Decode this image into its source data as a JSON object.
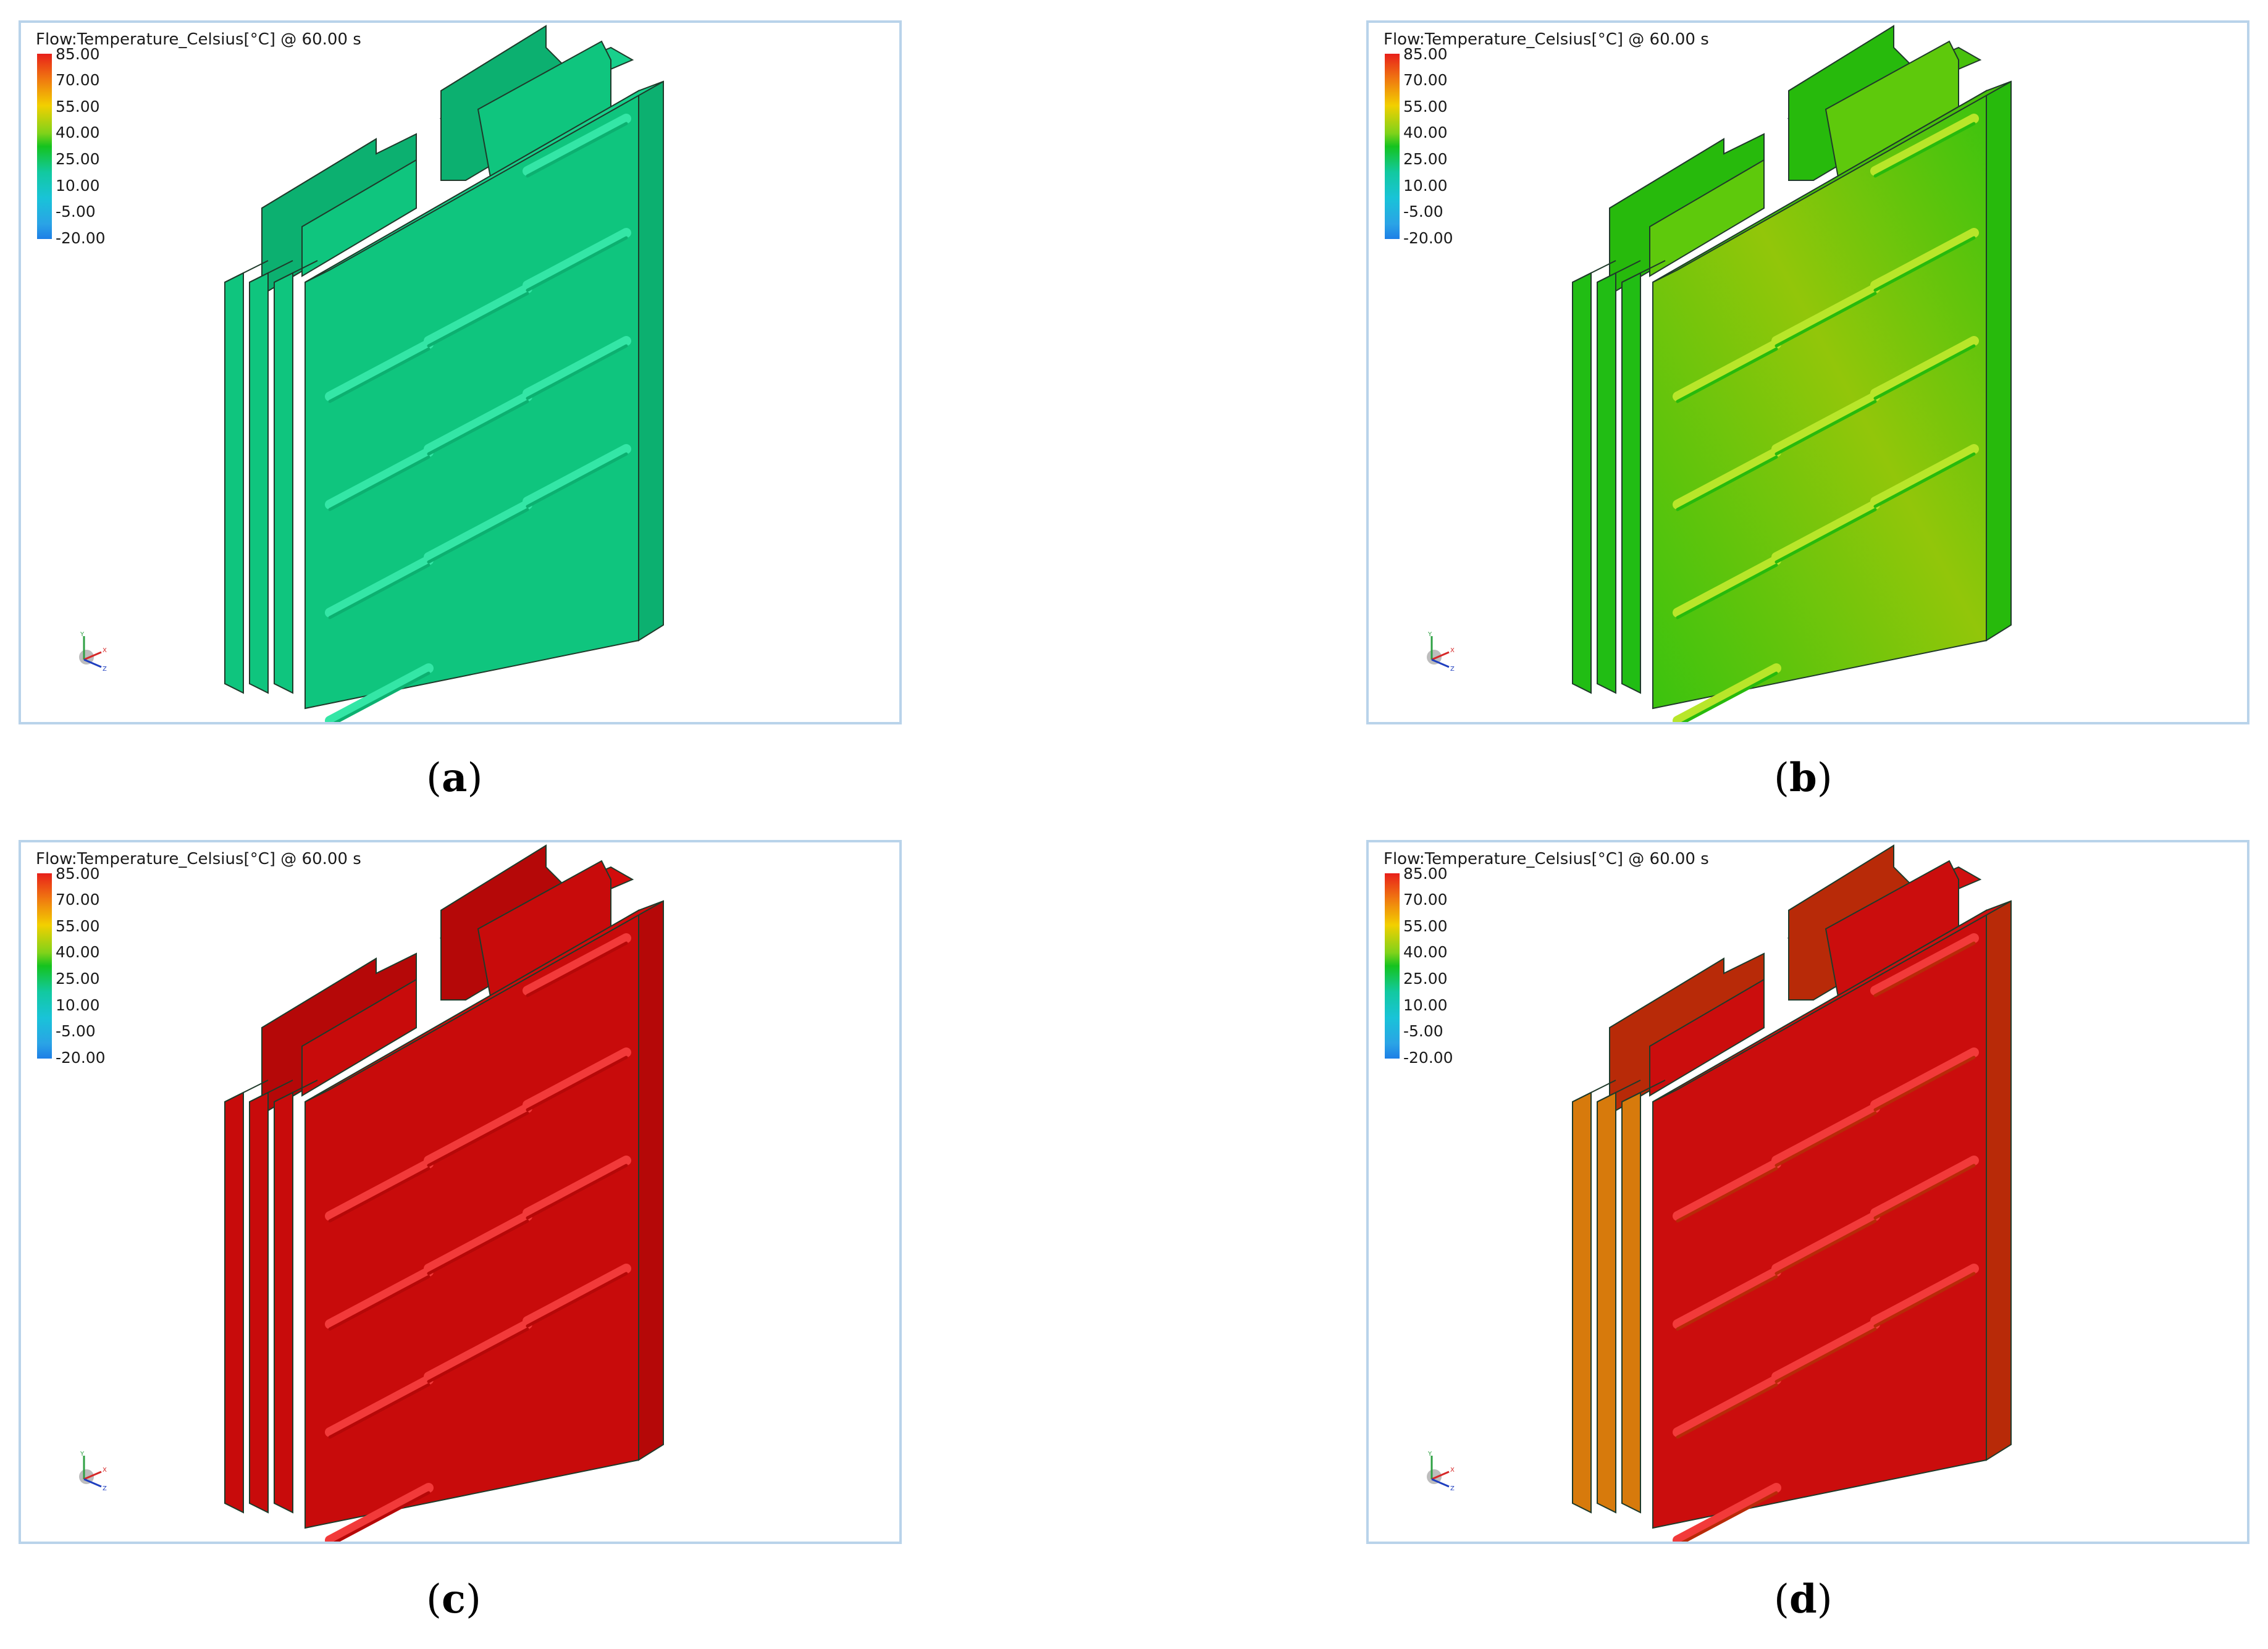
{
  "panels": [
    {
      "id": "a",
      "title": "Flow:Temperature_Celsius[°C] @ 60.00 s",
      "caption_letter": "a",
      "colors": {
        "front": "#0fc57e",
        "side": "#0cb070",
        "top": "#18d08c",
        "groove": "#34e6a6",
        "grad": [
          "#0fc57e",
          "#0fc57e"
        ],
        "left_slab": "#0fc57e"
      }
    },
    {
      "id": "b",
      "title": "Flow:Temperature_Celsius[°C] @ 60.00 s",
      "caption_letter": "b",
      "colors": {
        "front": "#5ec90c",
        "side": "#27ba0c",
        "top": "#48c10c",
        "groove": "#b8e62a",
        "grad": [
          "#3bc30e",
          "#92c60a"
        ],
        "left_slab": "#21bd14"
      }
    },
    {
      "id": "c",
      "title": "Flow:Temperature_Celsius[°C] @ 60.00 s",
      "caption_letter": "c",
      "colors": {
        "front": "#c80b0b",
        "side": "#b50808",
        "top": "#d20c0c",
        "groove": "#f23a3a",
        "grad": [
          "#c80b0b",
          "#c80b0b"
        ],
        "left_slab": "#c80b0b"
      }
    },
    {
      "id": "d",
      "title": "Flow:Temperature_Celsius[°C] @ 60.00 s",
      "caption_letter": "d",
      "colors": {
        "front": "#cb0d0d",
        "side": "#b82a08",
        "top": "#d01010",
        "groove": "#f23a3a",
        "grad": [
          "#cb0d0d",
          "#cb0d0d"
        ],
        "left_slab": "#d77a0c"
      }
    }
  ],
  "legend": {
    "ticks": [
      "85.00",
      "70.00",
      "55.00",
      "40.00",
      "25.00",
      "10.00",
      "-5.00",
      "-20.00"
    ]
  },
  "triad": {
    "x_label": "X",
    "y_label": "Y",
    "z_label": "Z"
  }
}
